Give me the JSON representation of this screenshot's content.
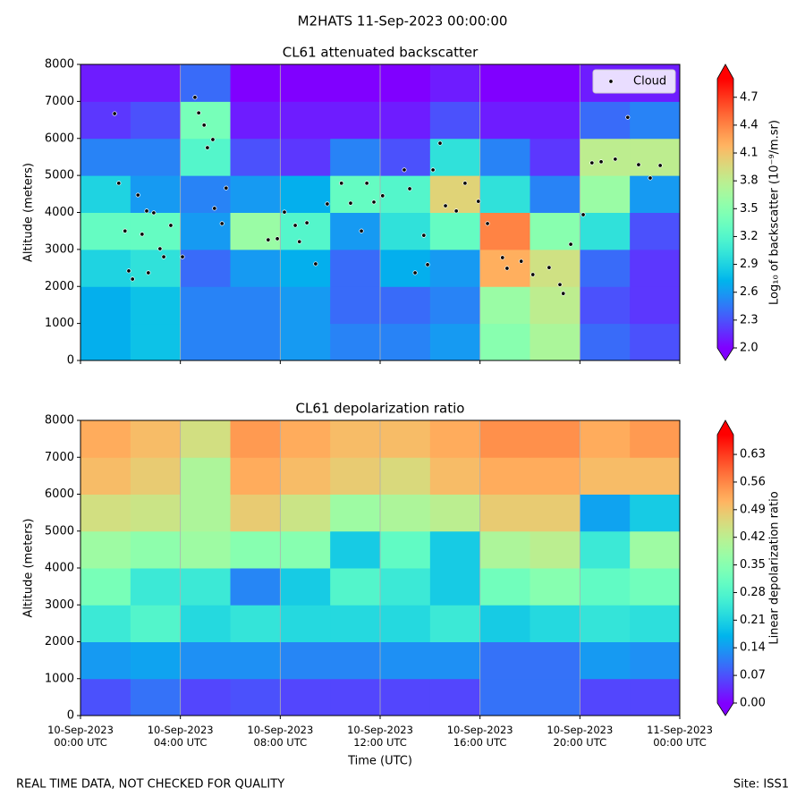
{
  "suptitle": "M2HATS 11-Sep-2023 00:00:00",
  "footer_left": "REAL TIME DATA, NOT CHECKED FOR QUALITY",
  "footer_right": "Site: ISS1",
  "chart_data": [
    {
      "type": "heatmap",
      "title": "CL61 attenuated backscatter",
      "y_label": "Altitude (meters)",
      "colorbar_label": "Log₁₀ of backscatter (10⁻⁹/m.sr)",
      "colormap": "rainbow",
      "xlim": [
        "2023-09-10 00:00",
        "2023-09-11 00:00"
      ],
      "ylim": [
        0,
        8000
      ],
      "yticks": [
        0,
        1000,
        2000,
        3000,
        4000,
        5000,
        6000,
        7000,
        8000
      ],
      "clim": [
        2.0,
        4.9
      ],
      "cticks": [
        {
          "value": 2.0,
          "label": "2.0"
        },
        {
          "value": 2.3,
          "label": "2.3"
        },
        {
          "value": 2.6,
          "label": "2.6"
        },
        {
          "value": 2.9,
          "label": "2.9"
        },
        {
          "value": 3.2,
          "label": "3.2"
        },
        {
          "value": 3.5,
          "label": "3.5"
        },
        {
          "value": 3.8,
          "label": "3.8"
        },
        {
          "value": 4.1,
          "label": "4.1"
        },
        {
          "value": 4.4,
          "label": "4.4"
        },
        {
          "value": 4.7,
          "label": "4.7"
        }
      ],
      "x_bins": [
        "2023-09-10 00:00",
        "2023-09-10 02:00",
        "2023-09-10 04:00",
        "2023-09-10 06:00",
        "2023-09-10 08:00",
        "2023-09-10 10:00",
        "2023-09-10 12:00",
        "2023-09-10 14:00",
        "2023-09-10 16:00",
        "2023-09-10 18:00",
        "2023-09-10 20:00",
        "2023-09-10 22:00",
        "2023-09-11 00:00"
      ],
      "y_bins": [
        0,
        1000,
        2000,
        3000,
        4000,
        5000,
        6000,
        7000,
        8000
      ],
      "z": [
        [
          2.7,
          2.8,
          2.5,
          2.5,
          2.6,
          2.5,
          2.5,
          2.6,
          3.5,
          3.7,
          2.4,
          2.3
        ],
        [
          2.7,
          2.8,
          2.5,
          2.5,
          2.6,
          2.4,
          2.4,
          2.5,
          3.6,
          3.8,
          2.3,
          2.2
        ],
        [
          2.9,
          3.0,
          2.4,
          2.6,
          2.7,
          2.4,
          2.7,
          2.6,
          4.2,
          3.9,
          2.4,
          2.2
        ],
        [
          3.3,
          3.3,
          2.6,
          3.6,
          3.2,
          2.6,
          3.0,
          3.3,
          4.4,
          3.5,
          3.0,
          2.3
        ],
        [
          2.9,
          2.6,
          2.5,
          2.6,
          2.7,
          3.3,
          3.2,
          4.0,
          3.0,
          2.5,
          3.6,
          2.6
        ],
        [
          2.5,
          2.5,
          3.2,
          2.3,
          2.2,
          2.5,
          2.3,
          3.0,
          2.5,
          2.2,
          3.8,
          3.8
        ],
        [
          2.2,
          2.3,
          3.4,
          2.1,
          2.1,
          2.1,
          2.1,
          2.3,
          2.1,
          2.1,
          2.4,
          2.5
        ],
        [
          2.1,
          2.1,
          2.4,
          2.0,
          2.0,
          2.0,
          2.0,
          2.1,
          2.0,
          2.0,
          2.1,
          2.1
        ]
      ],
      "grid": "x",
      "legend": "upper right",
      "series": [
        {
          "name": "Cloud",
          "color": "#000000",
          "x": [
            "2023-09-10 01:22",
            "2023-09-10 01:32",
            "2023-09-10 01:47",
            "2023-09-10 01:56",
            "2023-09-10 02:05",
            "2023-09-10 02:18",
            "2023-09-10 02:28",
            "2023-09-10 02:39",
            "2023-09-10 02:43",
            "2023-09-10 02:56",
            "2023-09-10 03:11",
            "2023-09-10 03:20",
            "2023-09-10 03:37",
            "2023-09-10 04:05",
            "2023-09-10 04:35",
            "2023-09-10 04:44",
            "2023-09-10 04:57",
            "2023-09-10 05:05",
            "2023-09-10 05:18",
            "2023-09-10 05:22",
            "2023-09-10 05:40",
            "2023-09-10 05:50",
            "2023-09-10 07:31",
            "2023-09-10 07:53",
            "2023-09-10 08:10",
            "2023-09-10 08:36",
            "2023-09-10 08:46",
            "2023-09-10 09:04",
            "2023-09-10 09:25",
            "2023-09-10 09:53",
            "2023-09-10 10:27",
            "2023-09-10 10:49",
            "2023-09-10 11:15",
            "2023-09-10 11:28",
            "2023-09-10 11:45",
            "2023-09-10 12:06",
            "2023-09-10 12:58",
            "2023-09-10 13:11",
            "2023-09-10 13:24",
            "2023-09-10 13:45",
            "2023-09-10 13:54",
            "2023-09-10 14:07",
            "2023-09-10 14:24",
            "2023-09-10 14:37",
            "2023-09-10 15:03",
            "2023-09-10 15:24",
            "2023-09-10 15:56",
            "2023-09-10 16:18",
            "2023-09-10 16:54",
            "2023-09-10 17:05",
            "2023-09-10 17:39",
            "2023-09-10 18:07",
            "2023-09-10 18:46",
            "2023-09-10 19:12",
            "2023-09-10 19:20",
            "2023-09-10 19:38",
            "2023-09-10 20:08",
            "2023-09-10 20:29",
            "2023-09-10 20:51",
            "2023-09-10 21:25",
            "2023-09-10 21:55",
            "2023-09-10 22:21",
            "2023-09-10 22:49",
            "2023-09-10 23:13"
          ],
          "values": [
            6670,
            4790,
            3500,
            2420,
            2200,
            4470,
            3410,
            4040,
            2370,
            3990,
            3020,
            2800,
            3650,
            2800,
            7110,
            6690,
            6360,
            5750,
            5970,
            4110,
            3700,
            4660,
            3260,
            3290,
            4010,
            3650,
            3210,
            3720,
            2610,
            4230,
            4790,
            4250,
            3500,
            4790,
            4280,
            4450,
            5150,
            4640,
            2370,
            3380,
            2590,
            5150,
            5870,
            4180,
            4040,
            4790,
            4300,
            3700,
            2780,
            2490,
            2680,
            2320,
            2510,
            2050,
            1810,
            3140,
            3940,
            5340,
            5370,
            5440,
            6570,
            5290,
            4930,
            5270
          ]
        }
      ]
    },
    {
      "type": "heatmap",
      "title": "CL61 depolarization ratio",
      "y_label": "Altitude (meters)",
      "x_label": "Time (UTC)",
      "colorbar_label": "Linear depolarization ratio",
      "colormap": "rainbow",
      "xlim": [
        "2023-09-10 00:00",
        "2023-09-11 00:00"
      ],
      "ylim": [
        0,
        8000
      ],
      "yticks": [
        0,
        1000,
        2000,
        3000,
        4000,
        5000,
        6000,
        7000,
        8000
      ],
      "xticks": [
        {
          "value": "2023-09-10 00:00",
          "label": "10-Sep-2023\n00:00 UTC"
        },
        {
          "value": "2023-09-10 04:00",
          "label": "10-Sep-2023\n04:00 UTC"
        },
        {
          "value": "2023-09-10 08:00",
          "label": "10-Sep-2023\n08:00 UTC"
        },
        {
          "value": "2023-09-10 12:00",
          "label": "10-Sep-2023\n12:00 UTC"
        },
        {
          "value": "2023-09-10 16:00",
          "label": "10-Sep-2023\n16:00 UTC"
        },
        {
          "value": "2023-09-10 20:00",
          "label": "10-Sep-2023\n20:00 UTC"
        },
        {
          "value": "2023-09-11 00:00",
          "label": "11-Sep-2023\n00:00 UTC"
        }
      ],
      "clim": [
        0,
        0.68
      ],
      "cticks": [
        {
          "value": 0,
          "label": "0.00"
        },
        {
          "value": 0.07,
          "label": "0.07"
        },
        0.14,
        0.21,
        0.28,
        0.35,
        0.42,
        0.49,
        0.56,
        0.63
      ],
      "x_bins": [
        "2023-09-10 00:00",
        "2023-09-10 02:00",
        "2023-09-10 04:00",
        "2023-09-10 06:00",
        "2023-09-10 08:00",
        "2023-09-10 10:00",
        "2023-09-10 12:00",
        "2023-09-10 14:00",
        "2023-09-10 16:00",
        "2023-09-10 18:00",
        "2023-09-10 20:00",
        "2023-09-10 22:00",
        "2023-09-11 00:00"
      ],
      "y_bins": [
        0,
        1000,
        2000,
        3000,
        4000,
        5000,
        6000,
        7000,
        8000
      ],
      "z": [
        [
          0.07,
          0.1,
          0.06,
          0.07,
          0.06,
          0.06,
          0.06,
          0.06,
          0.1,
          0.1,
          0.06,
          0.06
        ],
        [
          0.14,
          0.15,
          0.13,
          0.13,
          0.12,
          0.12,
          0.13,
          0.13,
          0.1,
          0.1,
          0.14,
          0.13
        ],
        [
          0.25,
          0.28,
          0.22,
          0.24,
          0.22,
          0.22,
          0.22,
          0.25,
          0.2,
          0.22,
          0.24,
          0.23
        ],
        [
          0.33,
          0.25,
          0.25,
          0.12,
          0.2,
          0.28,
          0.25,
          0.2,
          0.32,
          0.35,
          0.3,
          0.32
        ],
        [
          0.38,
          0.36,
          0.38,
          0.35,
          0.35,
          0.2,
          0.3,
          0.2,
          0.4,
          0.42,
          0.25,
          0.38
        ],
        [
          0.45,
          0.44,
          0.4,
          0.48,
          0.44,
          0.38,
          0.4,
          0.42,
          0.48,
          0.48,
          0.15,
          0.2
        ],
        [
          0.5,
          0.48,
          0.4,
          0.52,
          0.5,
          0.48,
          0.46,
          0.5,
          0.52,
          0.52,
          0.5,
          0.5
        ],
        [
          0.52,
          0.5,
          0.45,
          0.54,
          0.52,
          0.5,
          0.5,
          0.52,
          0.55,
          0.55,
          0.52,
          0.54
        ]
      ],
      "grid": "x"
    }
  ]
}
